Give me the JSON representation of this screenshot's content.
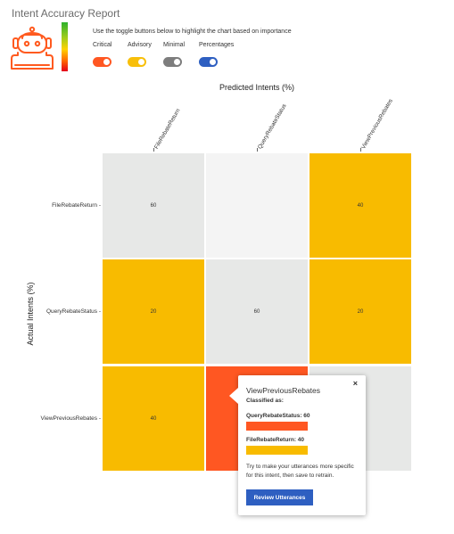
{
  "page": {
    "title": "Intent Accuracy Report",
    "instructions": "Use the toggle buttons below to highlight the chart based on importance"
  },
  "toggles": [
    {
      "label": "Critical",
      "color": "#ff5722",
      "on": true
    },
    {
      "label": "Advisory",
      "color": "#f8bf0a",
      "on": true
    },
    {
      "label": "Minimal",
      "color": "#7d7d7d",
      "on": true
    },
    {
      "label": "Percentages",
      "color": "#2e5fc1",
      "on": true
    }
  ],
  "chart_data": {
    "type": "heatmap",
    "xlabel": "Predicted Intents (%)",
    "ylabel": "Actual Intents (%)",
    "x_categories": [
      "FileRebateReturn",
      "QueryRebateStatus",
      "ViewPreviousRebates"
    ],
    "y_categories": [
      "FileRebateReturn",
      "QueryRebateStatus",
      "ViewPreviousRebates"
    ],
    "cells": [
      {
        "row": 0,
        "col": 0,
        "value": "60",
        "level": "minimal"
      },
      {
        "row": 0,
        "col": 1,
        "value": "",
        "level": "none"
      },
      {
        "row": 0,
        "col": 2,
        "value": "40",
        "level": "advisory"
      },
      {
        "row": 1,
        "col": 0,
        "value": "20",
        "level": "advisory"
      },
      {
        "row": 1,
        "col": 1,
        "value": "60",
        "level": "minimal"
      },
      {
        "row": 1,
        "col": 2,
        "value": "20",
        "level": "advisory"
      },
      {
        "row": 2,
        "col": 0,
        "value": "40",
        "level": "advisory"
      },
      {
        "row": 2,
        "col": 1,
        "value": "",
        "level": "critical"
      },
      {
        "row": 2,
        "col": 2,
        "value": "",
        "level": "minimal"
      }
    ],
    "level_colors": {
      "critical": "#ff5722",
      "advisory": "#f8bb00",
      "minimal": "#e7e8e7",
      "none": "#f4f4f4"
    }
  },
  "tooltip": {
    "title": "ViewPreviousRebates",
    "subtitle": "Classified as:",
    "close": "×",
    "items": [
      {
        "label": "QueryRebateStatus: 60",
        "color": "#ff5722"
      },
      {
        "label": "FileRebateReturn: 40",
        "color": "#f8bb00"
      }
    ],
    "message": "Try to make your utterances more specific for this intent, then save to retrain.",
    "button": "Review Utterances"
  }
}
